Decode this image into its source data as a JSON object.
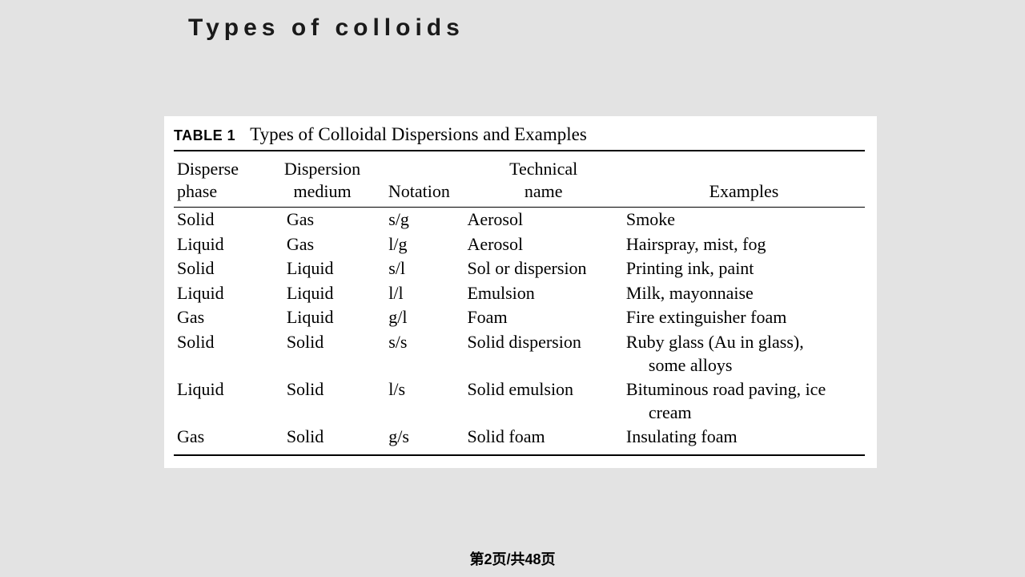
{
  "slide": {
    "title": "Types of colloids",
    "background_color": "#e3e3e3"
  },
  "table": {
    "label": "TABLE 1",
    "caption": "Types of Colloidal Dispersions and Examples",
    "background_color": "#ffffff",
    "rule_color": "#000000",
    "font_family": "serif",
    "body_fontsize": 22,
    "columns": [
      {
        "header_line1": "Disperse",
        "header_line2": "phase"
      },
      {
        "header_line1": "Dispersion",
        "header_line2": "medium"
      },
      {
        "header_line1": "",
        "header_line2": "Notation"
      },
      {
        "header_line1": "Technical",
        "header_line2": "name"
      },
      {
        "header_line1": "",
        "header_line2": "Examples"
      }
    ],
    "rows": [
      {
        "phase": "Solid",
        "medium": "Gas",
        "notation": "s/g",
        "technical": "Aerosol",
        "examples": "Smoke"
      },
      {
        "phase": "Liquid",
        "medium": "Gas",
        "notation": "l/g",
        "technical": "Aerosol",
        "examples": "Hairspray, mist, fog"
      },
      {
        "phase": "Solid",
        "medium": "Liquid",
        "notation": "s/l",
        "technical": "Sol or dispersion",
        "examples": "Printing ink, paint"
      },
      {
        "phase": "Liquid",
        "medium": "Liquid",
        "notation": "l/l",
        "technical": "Emulsion",
        "examples": "Milk, mayonnaise"
      },
      {
        "phase": "Gas",
        "medium": "Liquid",
        "notation": "g/l",
        "technical": "Foam",
        "examples": "Fire extinguisher foam"
      },
      {
        "phase": "Solid",
        "medium": "Solid",
        "notation": "s/s",
        "technical": "Solid dispersion",
        "examples": "Ruby glass (Au in glass),",
        "examples_cont": "some alloys"
      },
      {
        "phase": "Liquid",
        "medium": "Solid",
        "notation": "l/s",
        "technical": "Solid emulsion",
        "examples": "Bituminous road paving, ice",
        "examples_cont": "cream"
      },
      {
        "phase": "Gas",
        "medium": "Solid",
        "notation": "g/s",
        "technical": "Solid foam",
        "examples": "Insulating foam"
      }
    ]
  },
  "footer": {
    "page_indicator": "第2页/共48页"
  }
}
